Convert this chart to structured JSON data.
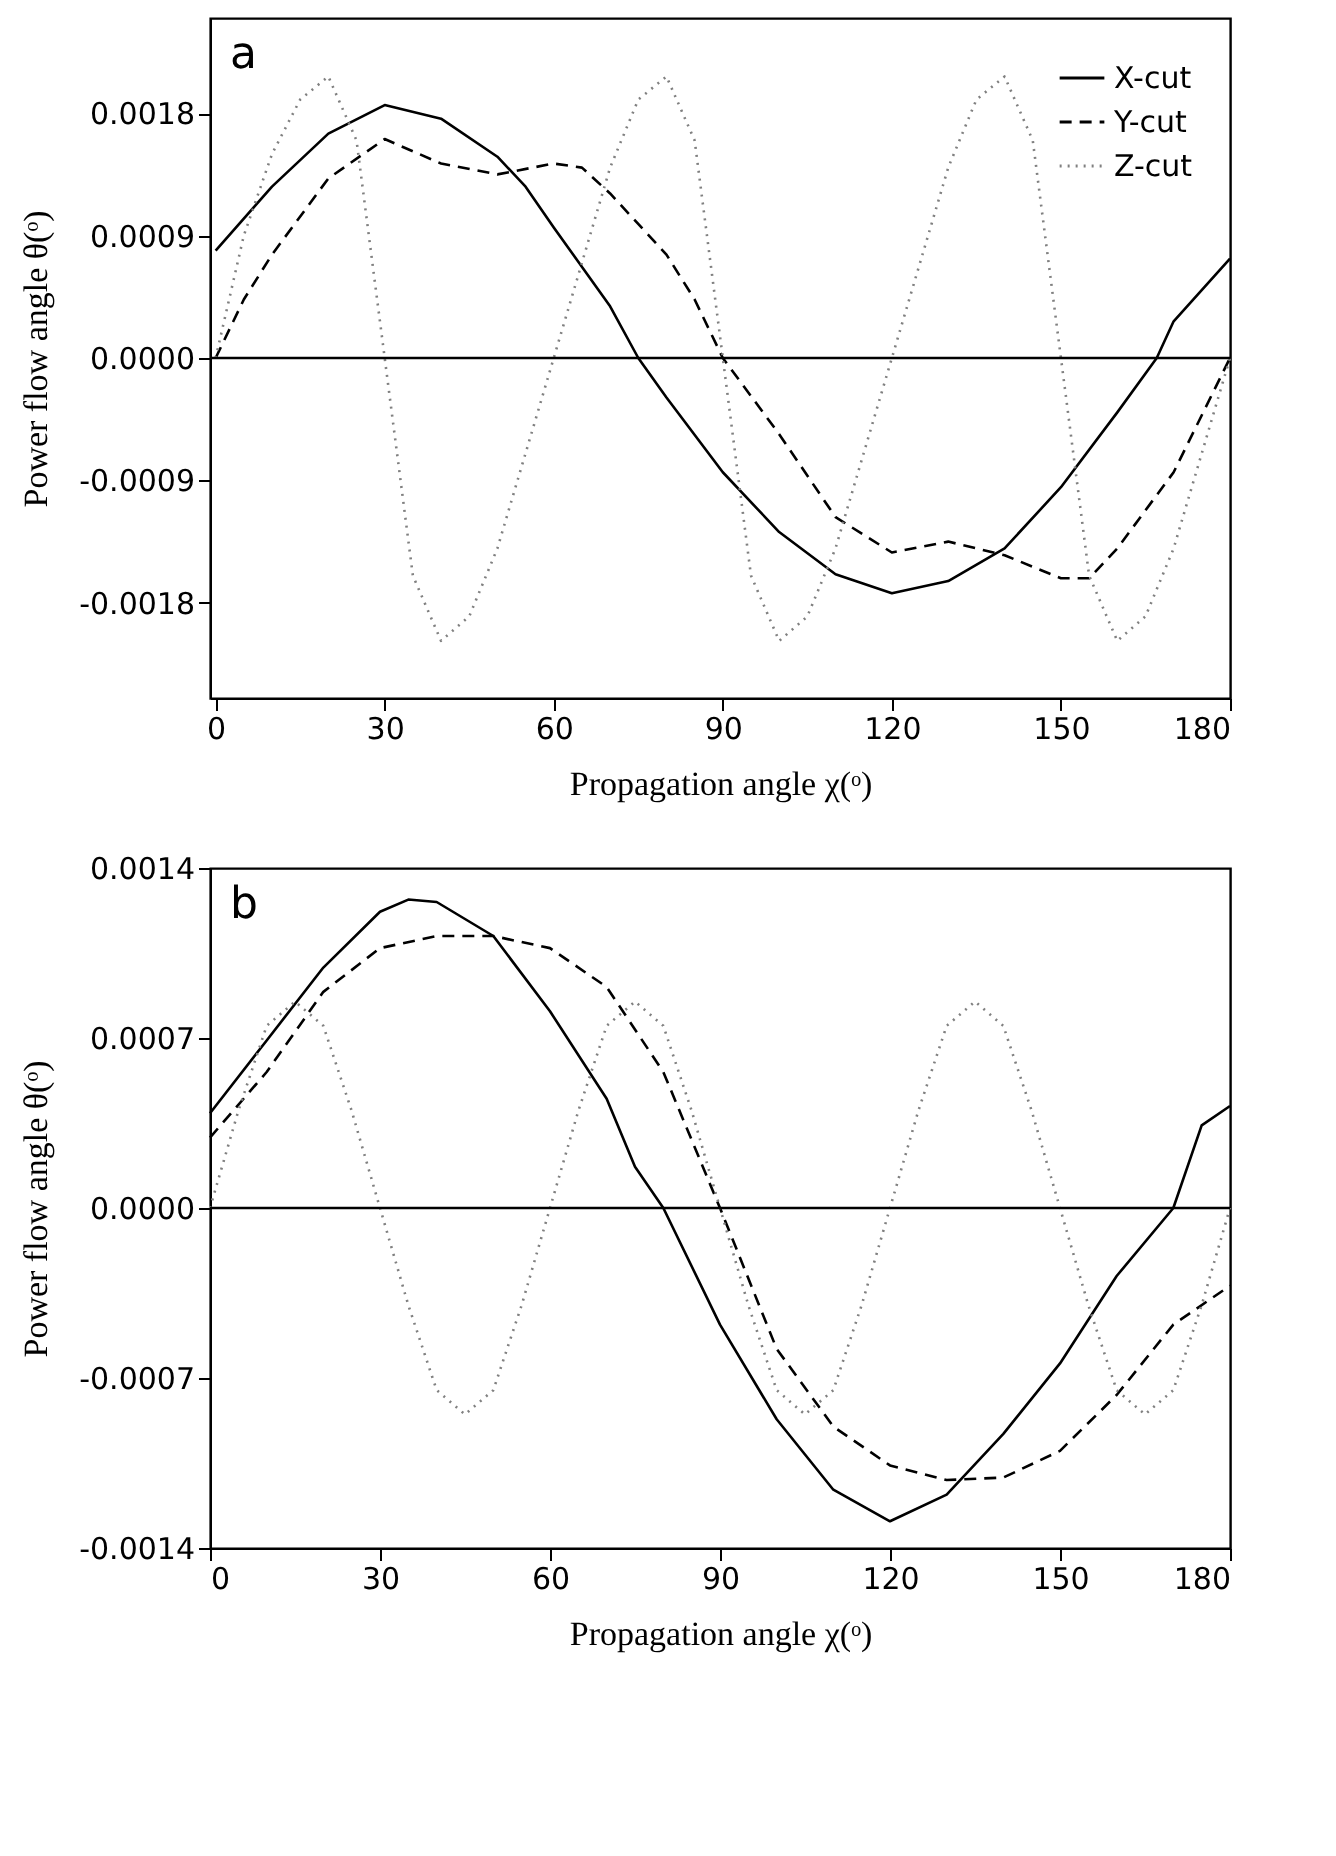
{
  "chart_data": [
    {
      "type": "line",
      "annotations": [
        "a"
      ],
      "xlabel": "Propagation angle χ(ᵒ)",
      "ylabel": "Power flow angle θ(ᵒ)",
      "xlim": [
        -1,
        180
      ],
      "xticks": [
        0,
        30,
        60,
        90,
        120,
        150,
        180
      ],
      "ylim": [
        -0.0025,
        0.0025
      ],
      "yticks": [
        {
          "value": -0.0018,
          "label": "-0.0018"
        },
        {
          "value": -0.0009,
          "label": "-0.0009"
        },
        {
          "value": 0,
          "label": "0.0000"
        },
        {
          "value": 0.0009,
          "label": "0.0009"
        },
        {
          "value": 0.0018,
          "label": "0.0018"
        }
      ],
      "grid": false,
      "legend": "top right",
      "marker": "none",
      "ref_lines": [
        {
          "axis": "y",
          "value": 0,
          "color": "#000000",
          "line_style": "solid"
        }
      ],
      "series": [
        {
          "name": "X-cut",
          "color": "#000000",
          "line_style": "solid",
          "x": [
            0,
            10,
            20,
            30,
            40,
            50,
            55,
            60,
            70,
            75,
            80,
            90,
            100,
            110,
            120,
            130,
            140,
            150,
            160,
            167,
            170,
            180
          ],
          "values": [
            0.00079,
            0.00126,
            0.00165,
            0.00186,
            0.00176,
            0.00148,
            0.00126,
            0.00096,
            0.00038,
            0.0,
            -0.00029,
            -0.00084,
            -0.00128,
            -0.00159,
            -0.00173,
            -0.00164,
            -0.0014,
            -0.00095,
            -0.0004,
            0.0,
            0.00027,
            0.00073
          ]
        },
        {
          "name": "Y-cut",
          "color": "#000000",
          "line_style": "dashed",
          "x": [
            0,
            5,
            10,
            20,
            30,
            40,
            50,
            60,
            65,
            70,
            80,
            85,
            90,
            100,
            110,
            120,
            130,
            140,
            150,
            155,
            160,
            170,
            180
          ],
          "values": [
            0.0,
            0.00043,
            0.00076,
            0.00132,
            0.00161,
            0.00143,
            0.00135,
            0.00143,
            0.0014,
            0.00121,
            0.00076,
            0.00043,
            0.0,
            -0.00056,
            -0.00117,
            -0.00143,
            -0.00135,
            -0.00145,
            -0.00162,
            -0.00162,
            -0.0014,
            -0.00084,
            0.0
          ]
        },
        {
          "name": "Z-cut",
          "color": "#808080",
          "line_style": "dotted",
          "x": [
            0,
            5,
            10,
            15,
            20,
            25,
            30,
            35,
            40,
            45,
            50,
            55,
            60,
            65,
            70,
            75,
            80,
            85,
            90,
            95,
            100,
            105,
            110,
            115,
            120,
            125,
            130,
            135,
            140,
            145,
            150,
            155,
            160,
            165,
            170,
            175,
            180
          ],
          "values": [
            0.0,
            0.0009,
            0.0015,
            0.0019,
            0.00207,
            0.0016,
            0.0,
            -0.0016,
            -0.00208,
            -0.0019,
            -0.0014,
            -0.0007,
            0.0,
            0.0007,
            0.0014,
            0.0019,
            0.00207,
            0.0016,
            0.0,
            -0.0016,
            -0.00208,
            -0.0019,
            -0.0014,
            -0.0007,
            0.0,
            0.0007,
            0.0014,
            0.0019,
            0.00207,
            0.0016,
            0.0,
            -0.0016,
            -0.00208,
            -0.0019,
            -0.0014,
            -0.0007,
            0.0
          ]
        }
      ]
    },
    {
      "type": "line",
      "annotations": [
        "b"
      ],
      "xlabel": "Propagation angle χ(ᵒ)",
      "ylabel": "Power flow angle θ(ᵒ)",
      "xlim": [
        0,
        180
      ],
      "xticks": [
        0,
        30,
        60,
        90,
        120,
        150,
        180
      ],
      "ylim": [
        -0.0014,
        0.0014
      ],
      "yticks": [
        {
          "value": -0.0014,
          "label": "-0.0014"
        },
        {
          "value": -0.0007,
          "label": "-0.0007"
        },
        {
          "value": 0,
          "label": "0.0000"
        },
        {
          "value": 0.0007,
          "label": "0.0007"
        },
        {
          "value": 0.0014,
          "label": "0.0014"
        }
      ],
      "grid": false,
      "legend": "top right",
      "marker": "none",
      "ref_lines": [
        {
          "axis": "y",
          "value": 0,
          "color": "#000000",
          "line_style": "solid"
        }
      ],
      "series": [
        {
          "name": "X-cut",
          "color": "#000000",
          "line_style": "solid",
          "x": [
            0,
            10,
            20,
            30,
            35,
            40,
            50,
            60,
            70,
            75,
            80,
            90,
            100,
            110,
            120,
            130,
            140,
            150,
            160,
            170,
            175,
            180
          ],
          "values": [
            0.00039,
            0.00069,
            0.00099,
            0.00122,
            0.00127,
            0.00126,
            0.00112,
            0.00081,
            0.00045,
            0.00017,
            0.0,
            -0.00048,
            -0.00087,
            -0.00116,
            -0.00129,
            -0.00118,
            -0.00093,
            -0.00064,
            -0.00028,
            0.0,
            0.00034,
            0.00042
          ]
        },
        {
          "name": "Y-cut",
          "color": "#000000",
          "line_style": "dashed",
          "x": [
            0,
            10,
            20,
            30,
            40,
            50,
            60,
            70,
            80,
            90,
            100,
            110,
            120,
            130,
            140,
            150,
            160,
            170,
            180
          ],
          "values": [
            0.00029,
            0.00056,
            0.00089,
            0.00107,
            0.00112,
            0.00112,
            0.00107,
            0.00091,
            0.00056,
            0.0,
            -0.00058,
            -0.0009,
            -0.00106,
            -0.00112,
            -0.00111,
            -0.001,
            -0.00077,
            -0.00048,
            -0.00032
          ]
        },
        {
          "name": "Z-cut",
          "color": "#808080",
          "line_style": "dotted",
          "x": [
            0,
            5,
            10,
            15,
            20,
            25,
            30,
            35,
            40,
            45,
            50,
            55,
            60,
            65,
            70,
            75,
            80,
            85,
            90,
            95,
            100,
            105,
            110,
            115,
            120,
            125,
            130,
            135,
            140,
            145,
            150,
            155,
            160,
            165,
            170,
            175,
            180
          ],
          "values": [
            0.0,
            0.0004,
            0.00075,
            0.00085,
            0.00075,
            0.0004,
            0.0,
            -0.0004,
            -0.00075,
            -0.00085,
            -0.00075,
            -0.0004,
            0.0,
            0.0004,
            0.00075,
            0.00085,
            0.00075,
            0.0004,
            0.0,
            -0.0004,
            -0.00075,
            -0.00085,
            -0.00075,
            -0.0004,
            0.0,
            0.0004,
            0.00075,
            0.00085,
            0.00075,
            0.0004,
            0.0,
            -0.0004,
            -0.00075,
            -0.00085,
            -0.00075,
            -0.0004,
            0.0
          ]
        }
      ]
    }
  ]
}
